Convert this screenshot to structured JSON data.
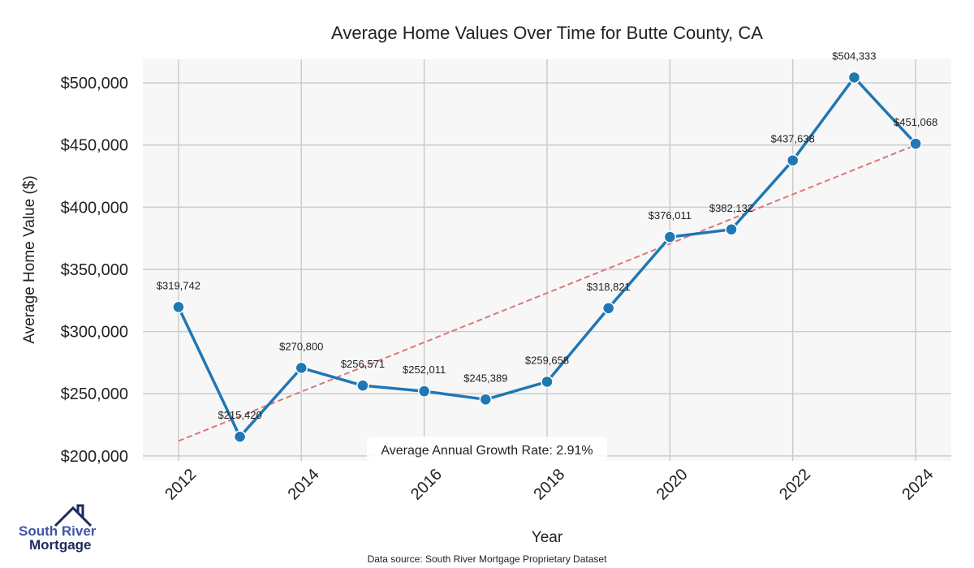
{
  "chart_data": {
    "type": "line",
    "title": "Average Home Values Over Time for Butte County, CA",
    "xlabel": "Year",
    "ylabel": "Average Home Value ($)",
    "x": [
      2012,
      2013,
      2014,
      2015,
      2016,
      2017,
      2018,
      2019,
      2020,
      2021,
      2022,
      2023,
      2024
    ],
    "series": [
      {
        "name": "Average Home Value",
        "color": "#1f77b4",
        "values": [
          319742,
          215420,
          270800,
          256571,
          252011,
          245389,
          259658,
          318821,
          376011,
          382132,
          437638,
          504333,
          451068
        ],
        "labels": [
          "$319,742",
          "$215,420",
          "$270,800",
          "$256,571",
          "$252,011",
          "$245,389",
          "$259,658",
          "$318,821",
          "$376,011",
          "$382,132",
          "$437,638",
          "$504,333",
          "$451,068"
        ]
      },
      {
        "name": "Trend",
        "color": "#d9787a",
        "style": "dashed",
        "x": [
          2012,
          2024
        ],
        "values": [
          212000,
          450000
        ]
      }
    ],
    "xticks": [
      "2012",
      "2014",
      "2016",
      "2018",
      "2020",
      "2022",
      "2024"
    ],
    "xtick_values": [
      2012,
      2014,
      2016,
      2018,
      2020,
      2022,
      2024
    ],
    "yticks": [
      "$200,000",
      "$250,000",
      "$300,000",
      "$350,000",
      "$400,000",
      "$450,000",
      "$500,000"
    ],
    "ytick_values": [
      200000,
      250000,
      300000,
      350000,
      400000,
      450000,
      500000
    ],
    "xlim": [
      2011.42,
      2024.58
    ],
    "ylim": [
      196000,
      519000
    ],
    "grid": true,
    "annotation": "Average Annual Growth Rate: 2.91%"
  },
  "footer": {
    "source": "Data source: South River Mortgage Proprietary Dataset"
  },
  "logo": {
    "line1": "South River",
    "line2": "Mortgage"
  }
}
